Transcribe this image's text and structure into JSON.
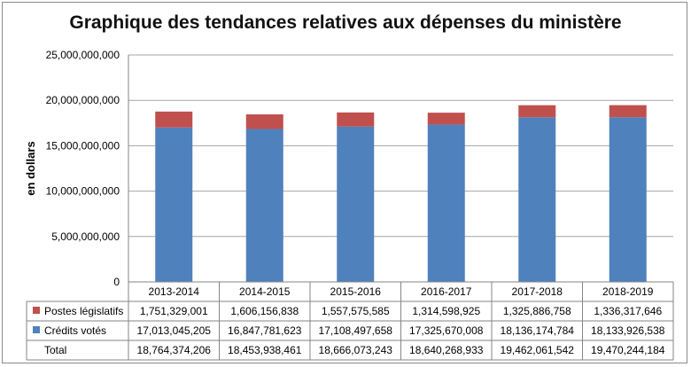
{
  "chart_data": {
    "type": "bar",
    "stacked": true,
    "title": "Graphique des tendances relatives aux dépenses du ministère",
    "ylabel": "en dollars",
    "ylim": [
      0,
      25000000000
    ],
    "yticks": [
      0,
      5000000000,
      10000000000,
      15000000000,
      20000000000,
      25000000000
    ],
    "ytick_labels": [
      "0",
      "5,000,000,000",
      "10,000,000,000",
      "15,000,000,000",
      "20,000,000,000",
      "25,000,000,000"
    ],
    "grid": true,
    "categories": [
      "2013-2014",
      "2014-2015",
      "2015-2016",
      "2016-2017",
      "2017-2018",
      "2018-2019"
    ],
    "series": [
      {
        "name": "Crédits votés",
        "color": "#4f81bd",
        "values": [
          17013045205,
          16847781623,
          17108497658,
          17325670008,
          18136174784,
          18133926538
        ],
        "labels": [
          "17,013,045,205",
          "16,847,781,623",
          "17,108,497,658",
          "17,325,670,008",
          "18,136,174,784",
          "18,133,926,538"
        ]
      },
      {
        "name": "Postes législatifs",
        "color": "#c0504d",
        "values": [
          1751329001,
          1606156838,
          1557575585,
          1314598925,
          1325886758,
          1336317646
        ],
        "labels": [
          "1,751,329,001",
          "1,606,156,838",
          "1,557,575,585",
          "1,314,598,925",
          "1,325,886,758",
          "1,336,317,646"
        ]
      }
    ],
    "table": {
      "row_order": [
        "Postes législatifs",
        "Crédits votés",
        "Total"
      ],
      "total_label": "Total",
      "totals": [
        "18,764,374,206",
        "18,453,938,461",
        "18,666,073,243",
        "18,640,268,933",
        "19,462,061,542",
        "19,470,244,184"
      ]
    }
  }
}
